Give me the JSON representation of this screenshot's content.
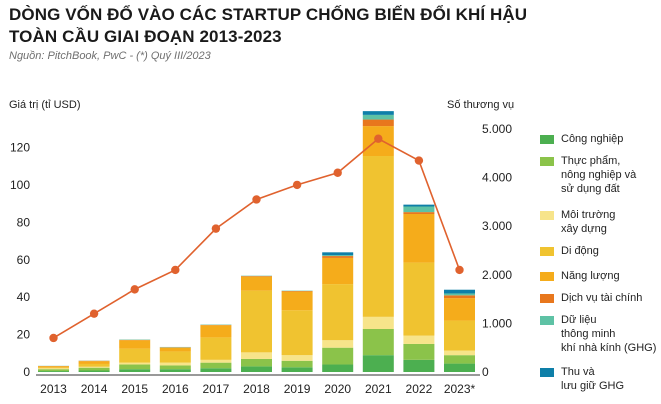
{
  "header": {
    "title": "DÒNG VỐN ĐỔ VÀO CÁC STARTUP CHỐNG BIẾN ĐỔI KHÍ HẬU TOÀN CẦU GIAI ĐOẠN 2013-2023",
    "source": "Nguồn: PitchBook, PwC - (*) Quý III/2023"
  },
  "chart_data": {
    "type": "bar",
    "stacked": true,
    "ylabel": "Giá trị (tỉ USD)",
    "y2label": "Số thương vụ",
    "categories": [
      "2013",
      "2014",
      "2015",
      "2016",
      "2017",
      "2018",
      "2019",
      "2020",
      "2021",
      "2022",
      "2023*"
    ],
    "ylim": [
      0,
      130
    ],
    "yticks": [
      "0",
      "20",
      "40",
      "60",
      "80",
      "100",
      "120"
    ],
    "y2lim": [
      0,
      5200
    ],
    "y2ticks": [
      "0",
      "1.000",
      "2.000",
      "3.000",
      "4.000",
      "5.000"
    ],
    "grid": false,
    "legend_position": "right",
    "series": [
      {
        "name": "Công nghiệp",
        "color": "#4caf50",
        "values": [
          0.5,
          0.8,
          1.5,
          1.5,
          2.0,
          3.0,
          2.5,
          4.0,
          9.0,
          6.5,
          4.5
        ]
      },
      {
        "name": "Thực phẩm,\nnông nghiệp và\nsử dụng đất",
        "color": "#8bc34a",
        "values": [
          1.0,
          1.5,
          2.5,
          2.0,
          3.0,
          4.0,
          3.5,
          9.0,
          14.0,
          8.5,
          4.5
        ]
      },
      {
        "name": "Môi trường\nxây dựng",
        "color": "#f7e48a",
        "values": [
          0.5,
          0.5,
          1.0,
          1.5,
          1.5,
          3.5,
          3.0,
          4.0,
          6.5,
          4.5,
          2.5
        ]
      },
      {
        "name": "Di động",
        "color": "#f0c330",
        "values": [
          0.5,
          1.5,
          7.5,
          6.0,
          12.0,
          33.0,
          24.0,
          30.0,
          86.0,
          39.0,
          16.0
        ]
      },
      {
        "name": "Năng lượng",
        "color": "#f5ac1b",
        "values": [
          0.6,
          1.5,
          4.5,
          2.0,
          6.5,
          7.5,
          10.0,
          14.0,
          16.0,
          26.0,
          12.0
        ]
      },
      {
        "name": "Dịch vụ tài chính",
        "color": "#e8771d",
        "values": [
          0.1,
          0.2,
          0.2,
          0.2,
          0.2,
          0.3,
          0.3,
          1.0,
          3.5,
          1.0,
          1.5
        ]
      },
      {
        "name": "Dữ liệu\nthông minh\nkhí nhà kính (GHG)",
        "color": "#5ec2a5",
        "values": [
          0.1,
          0.1,
          0.2,
          0.2,
          0.2,
          0.2,
          0.2,
          0.5,
          2.5,
          3.0,
          1.0
        ]
      },
      {
        "name": "Thu và\nlưu giữ GHG",
        "color": "#0e7fa8",
        "values": [
          0.0,
          0.0,
          0.0,
          0.0,
          0.0,
          0.0,
          0.0,
          1.5,
          2.0,
          1.0,
          2.0
        ]
      }
    ],
    "deals": {
      "axis": "right",
      "color": "#e0622e",
      "values": [
        700,
        1200,
        1700,
        2100,
        2950,
        3550,
        3850,
        4100,
        4800,
        4350,
        2100
      ]
    }
  }
}
